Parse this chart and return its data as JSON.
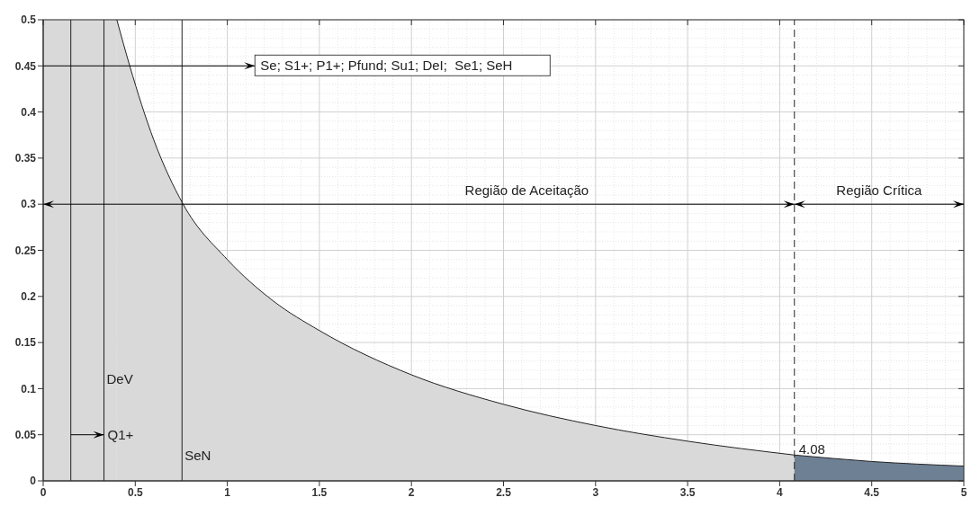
{
  "chart_data": {
    "type": "area",
    "series": [
      {
        "color": "#d9d9d9",
        "x": [
          0.4,
          0.47,
          0.6,
          0.76,
          1,
          1.25,
          1.5,
          2,
          2.5,
          3,
          3.5,
          4.08
        ],
        "values": [
          0.5,
          0.45,
          0.37,
          0.3,
          0.24,
          0.195,
          0.163,
          0.115,
          0.083,
          0.06,
          0.043,
          0.028
        ]
      },
      {
        "color": "#6e8194",
        "x": [
          4.08,
          4.5,
          5
        ],
        "values": [
          0.028,
          0.021,
          0.016
        ]
      }
    ],
    "xlim": [
      0,
      5
    ],
    "xticks": [
      0,
      0.5,
      1,
      1.5,
      2,
      2.5,
      3,
      3.5,
      4,
      4.5,
      5
    ],
    "ylim": [
      0,
      0.5
    ],
    "yticks": [
      0,
      0.05,
      0.1,
      0.15,
      0.2,
      0.25,
      0.3,
      0.35,
      0.4,
      0.45,
      0.5
    ],
    "grid": true,
    "ref_lines": [
      {
        "axis": "x",
        "value": 0.15
      },
      {
        "axis": "x",
        "value": 0.33,
        "label": "DeV"
      },
      {
        "axis": "x",
        "value": 0.754,
        "label": "SeN"
      },
      {
        "axis": "x",
        "value": 4.08,
        "label": "4.08",
        "line_style": "dashed"
      }
    ],
    "bands": [
      {
        "axis": "x",
        "from": 0,
        "to": 0.4,
        "color": "#d9d9d9"
      }
    ],
    "annotations": [
      {
        "text": "Se; S1+; P1+; Pfund; Su1; DeI;  Se1; SeH",
        "x": 0,
        "y": 0.45
      },
      "Região de Aceitação",
      "Região Crítica",
      {
        "text": "Q1+",
        "x": 0.33,
        "y": 0.05
      }
    ]
  }
}
